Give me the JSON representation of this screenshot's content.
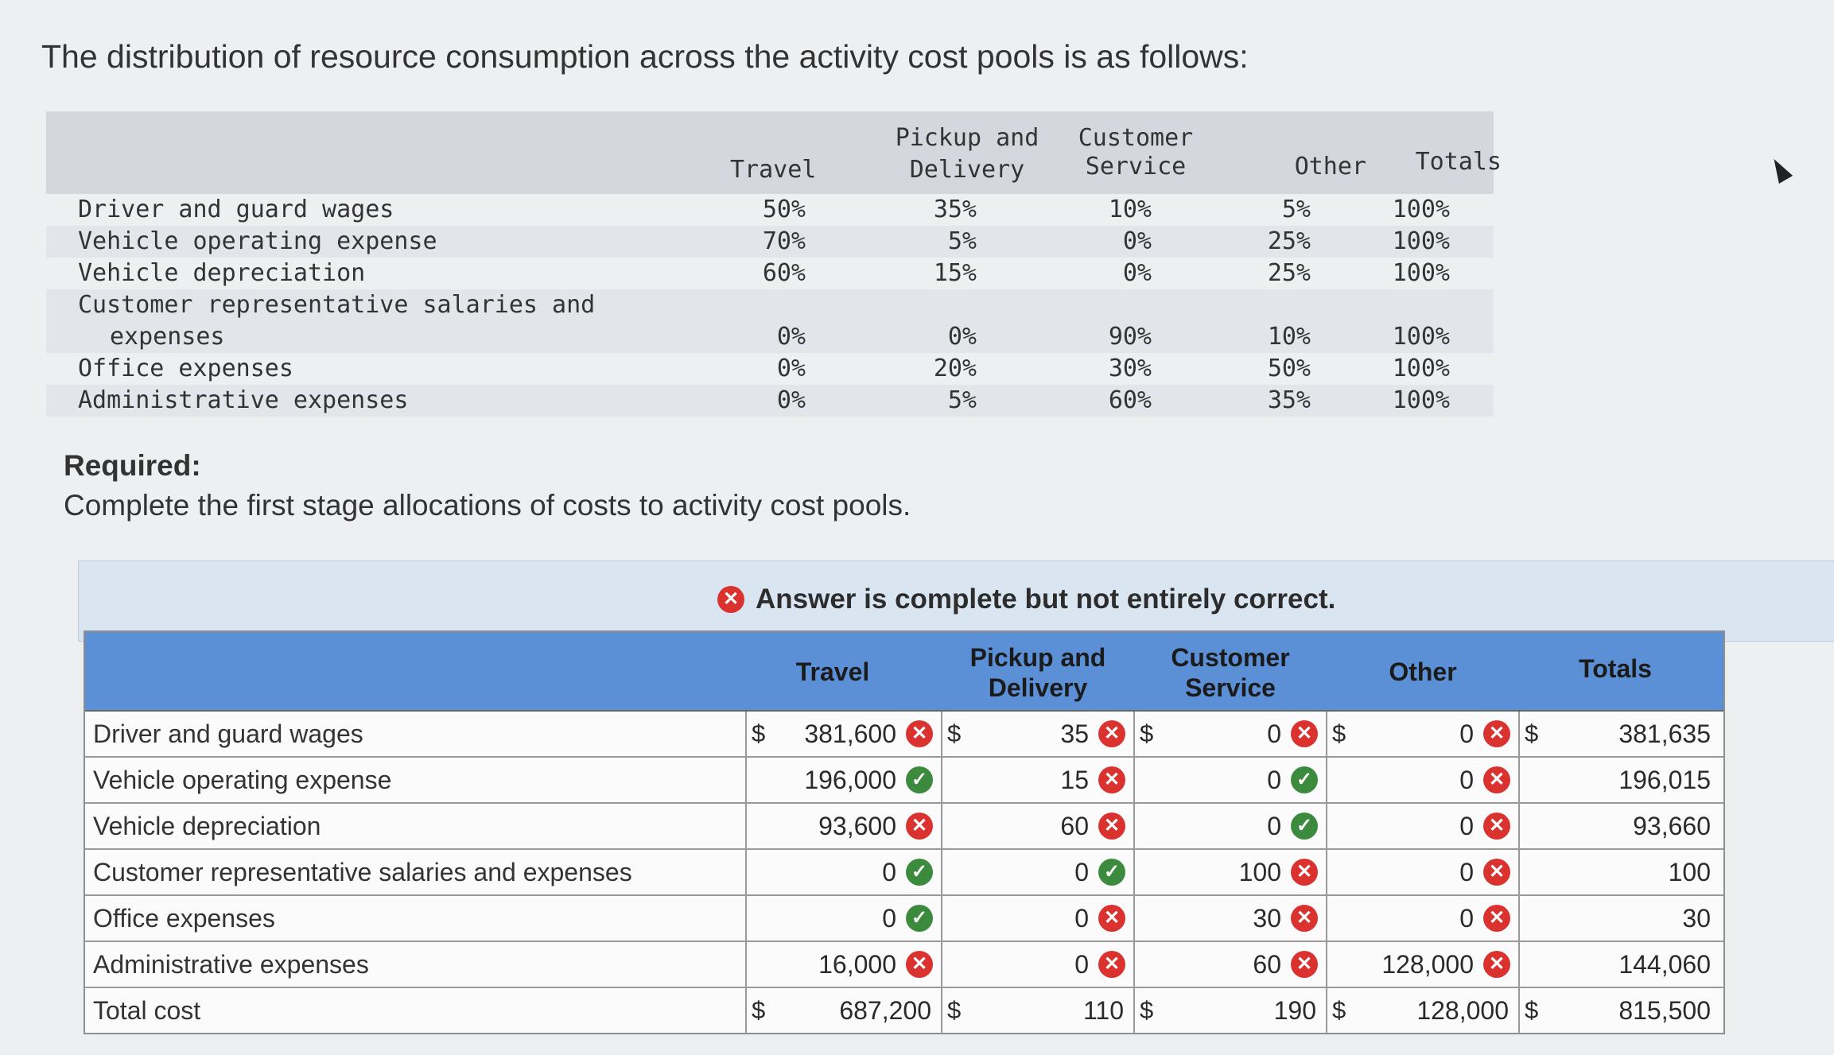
{
  "intro": "The distribution of resource consumption across the activity cost pools is as follows:",
  "distribution": {
    "headers": {
      "travel": "Travel",
      "pickup_l1": "Pickup and",
      "pickup_l2": "Delivery",
      "customer_l1": "Customer",
      "customer_l2": "Service",
      "other": "Other",
      "totals": "Totals"
    },
    "rows": [
      {
        "label": "Driver and guard wages",
        "label2": "",
        "travel": "50%",
        "pickup": "35%",
        "customer": "10%",
        "other": "5%",
        "totals": "100%"
      },
      {
        "label": "Vehicle operating expense",
        "label2": "",
        "travel": "70%",
        "pickup": "5%",
        "customer": "0%",
        "other": "25%",
        "totals": "100%"
      },
      {
        "label": "Vehicle depreciation",
        "label2": "",
        "travel": "60%",
        "pickup": "15%",
        "customer": "0%",
        "other": "25%",
        "totals": "100%"
      },
      {
        "label": "Customer representative salaries and",
        "label2": "expenses",
        "travel": "0%",
        "pickup": "0%",
        "customer": "90%",
        "other": "10%",
        "totals": "100%"
      },
      {
        "label": "Office expenses",
        "label2": "",
        "travel": "0%",
        "pickup": "20%",
        "customer": "30%",
        "other": "50%",
        "totals": "100%"
      },
      {
        "label": "Administrative expenses",
        "label2": "",
        "travel": "0%",
        "pickup": "5%",
        "customer": "60%",
        "other": "35%",
        "totals": "100%"
      }
    ]
  },
  "required": {
    "title": "Required:",
    "text": "Complete the first stage allocations of costs to activity cost pools."
  },
  "banner": {
    "message": "Answer is complete but not entirely correct."
  },
  "answer": {
    "headers": {
      "travel": "Travel",
      "pickup_l1": "Pickup and",
      "pickup_l2": "Delivery",
      "customer_l1": "Customer",
      "customer_l2": "Service",
      "other": "Other",
      "totals": "Totals"
    },
    "dollar": "$",
    "rows": [
      {
        "label": "Driver and guard wages",
        "dollar": true,
        "cells": [
          {
            "v": "381,600",
            "m": "x"
          },
          {
            "v": "35",
            "m": "x"
          },
          {
            "v": "0",
            "m": "x"
          },
          {
            "v": "0",
            "m": "x"
          },
          {
            "v": "381,635",
            "m": ""
          }
        ]
      },
      {
        "label": "Vehicle operating expense",
        "dollar": false,
        "cells": [
          {
            "v": "196,000",
            "m": "c"
          },
          {
            "v": "15",
            "m": "x"
          },
          {
            "v": "0",
            "m": "c"
          },
          {
            "v": "0",
            "m": "x"
          },
          {
            "v": "196,015",
            "m": ""
          }
        ]
      },
      {
        "label": "Vehicle depreciation",
        "dollar": false,
        "cells": [
          {
            "v": "93,600",
            "m": "x"
          },
          {
            "v": "60",
            "m": "x"
          },
          {
            "v": "0",
            "m": "c"
          },
          {
            "v": "0",
            "m": "x"
          },
          {
            "v": "93,660",
            "m": ""
          }
        ]
      },
      {
        "label": "Customer representative salaries and expenses",
        "dollar": false,
        "cells": [
          {
            "v": "0",
            "m": "c"
          },
          {
            "v": "0",
            "m": "c"
          },
          {
            "v": "100",
            "m": "x"
          },
          {
            "v": "0",
            "m": "x"
          },
          {
            "v": "100",
            "m": ""
          }
        ]
      },
      {
        "label": "Office expenses",
        "dollar": false,
        "cells": [
          {
            "v": "0",
            "m": "c"
          },
          {
            "v": "0",
            "m": "x"
          },
          {
            "v": "30",
            "m": "x"
          },
          {
            "v": "0",
            "m": "x"
          },
          {
            "v": "30",
            "m": ""
          }
        ]
      },
      {
        "label": "Administrative expenses",
        "dollar": false,
        "cells": [
          {
            "v": "16,000",
            "m": "x"
          },
          {
            "v": "0",
            "m": "x"
          },
          {
            "v": "60",
            "m": "x"
          },
          {
            "v": "128,000",
            "m": "x"
          },
          {
            "v": "144,060",
            "m": ""
          }
        ]
      },
      {
        "label": "Total cost",
        "dollar": true,
        "cells": [
          {
            "v": "687,200",
            "m": ""
          },
          {
            "v": "110",
            "m": ""
          },
          {
            "v": "190",
            "m": ""
          },
          {
            "v": "128,000",
            "m": ""
          },
          {
            "v": "815,500",
            "m": ""
          }
        ]
      }
    ]
  },
  "colors": {
    "header_blue": "#5b8fd6",
    "error_red": "#d9322f",
    "correct_green": "#3c8a3e"
  }
}
